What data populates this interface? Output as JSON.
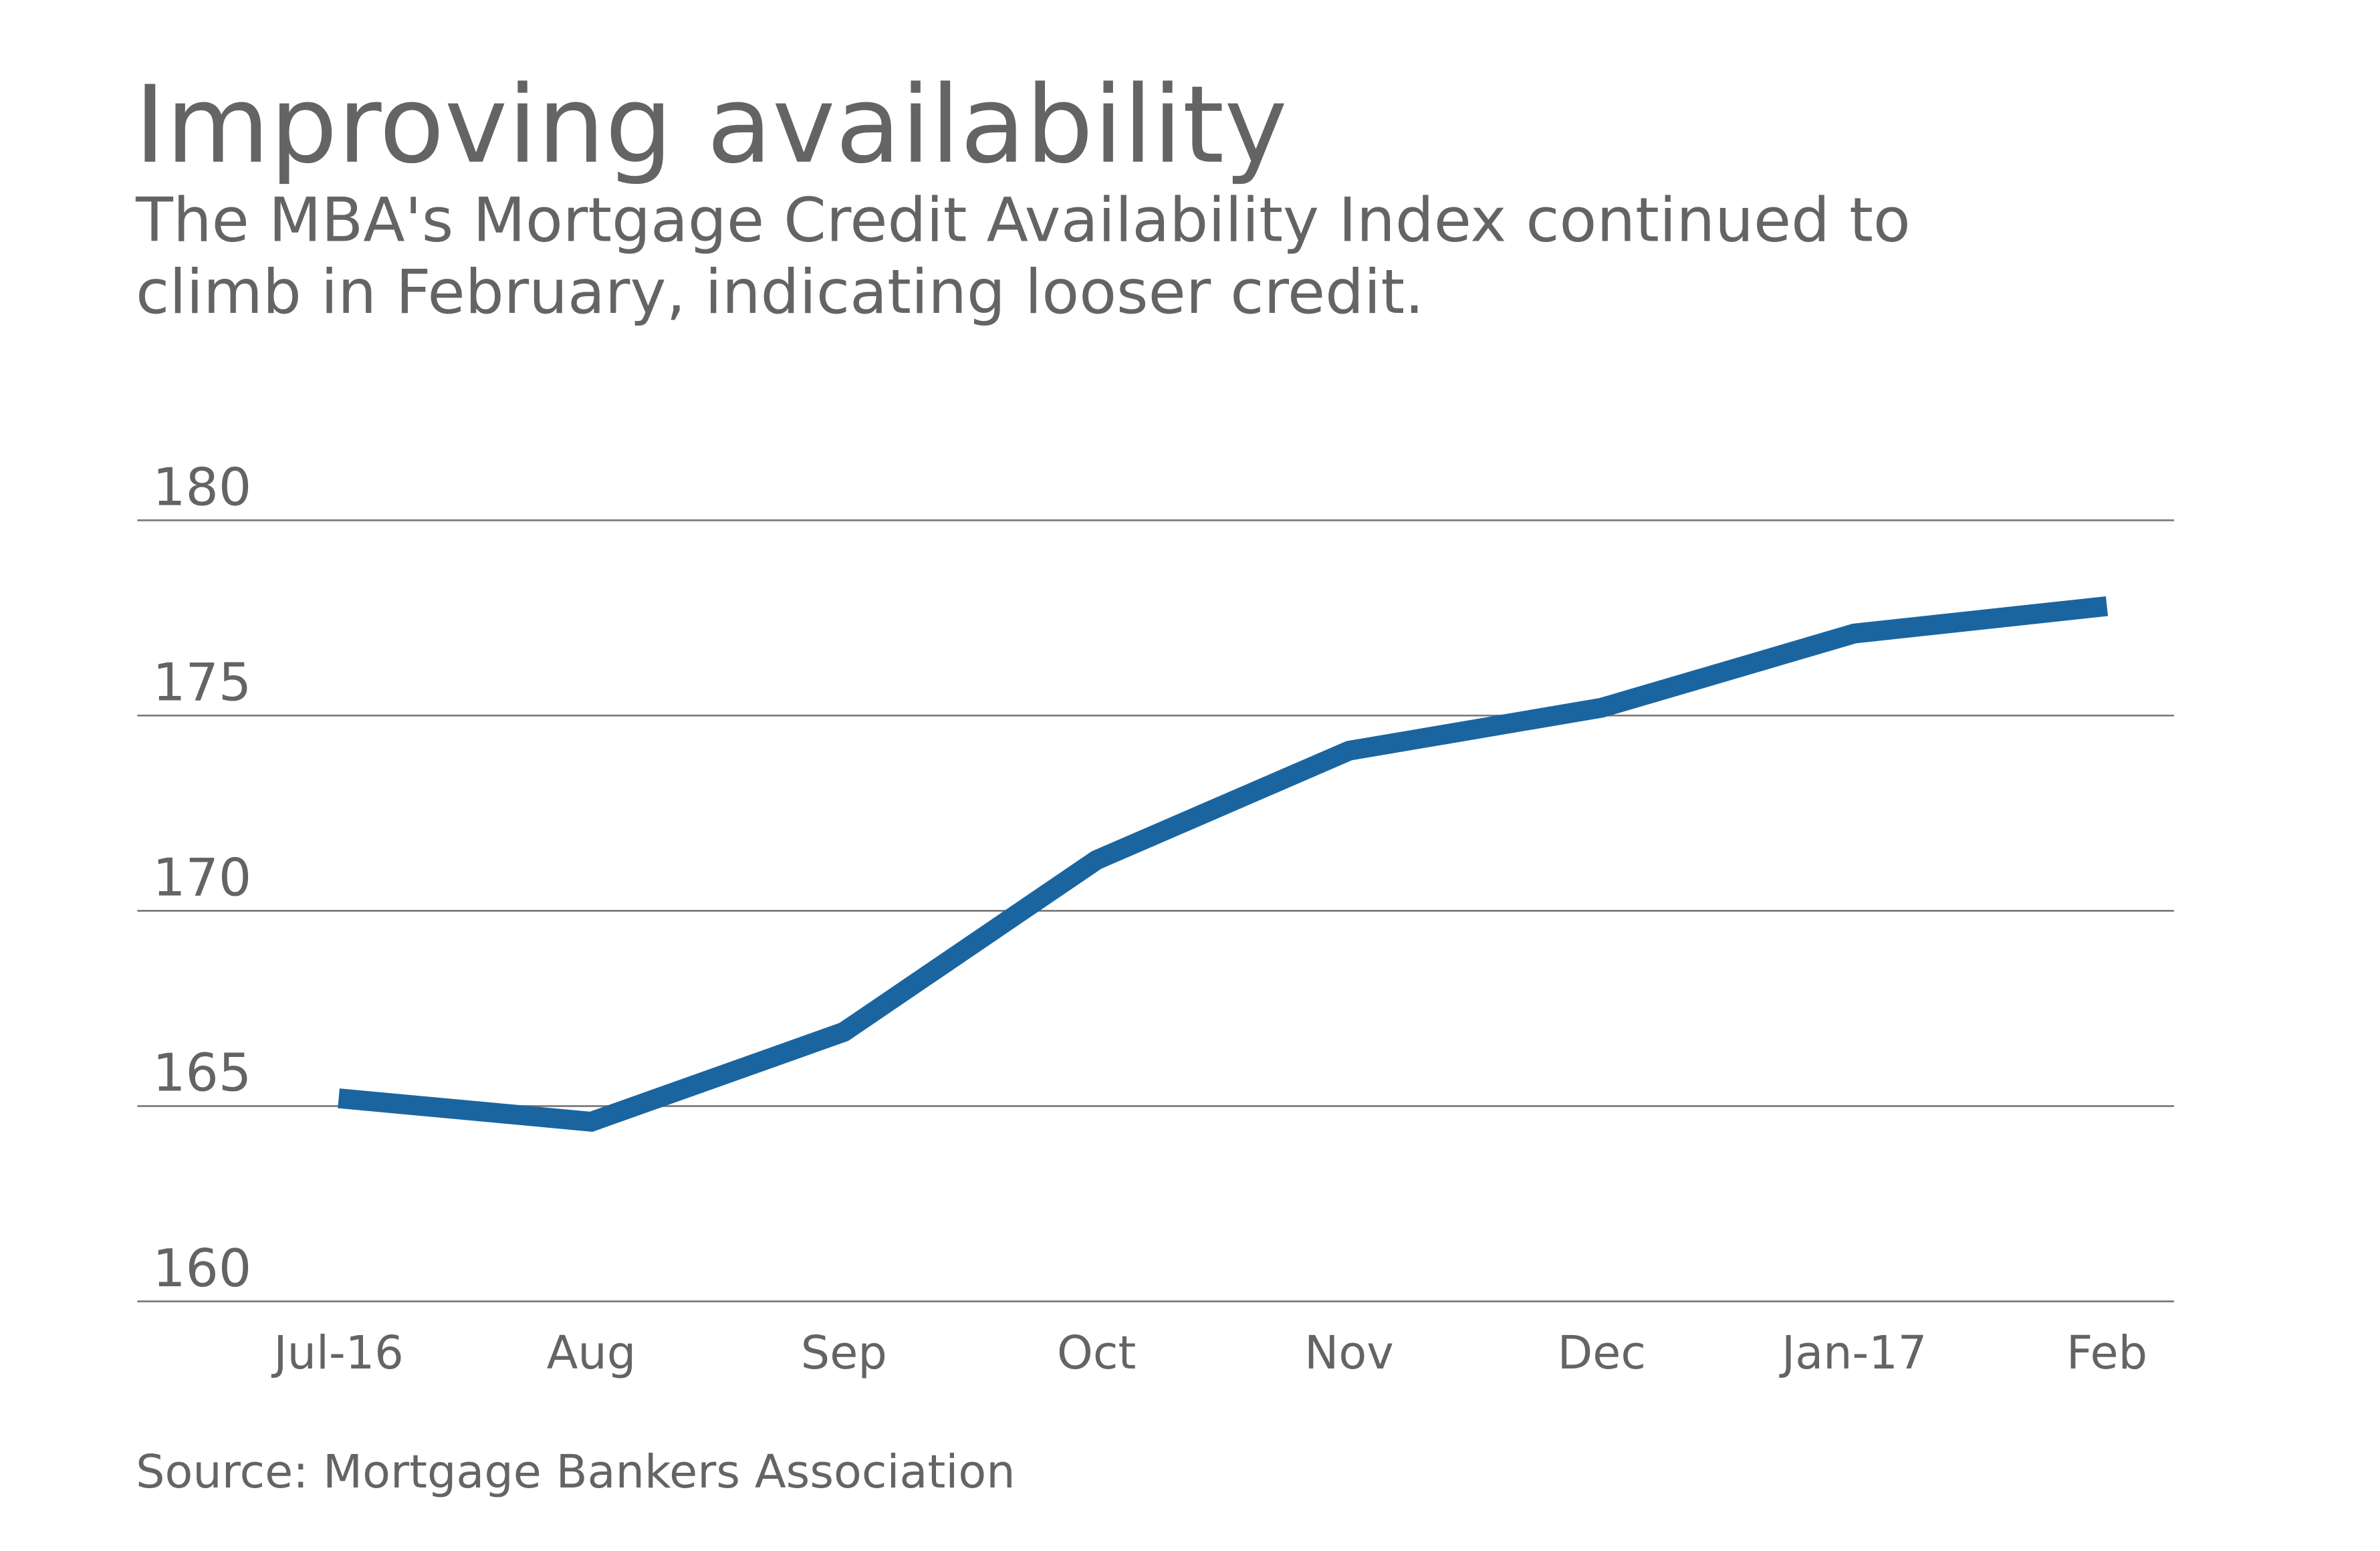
{
  "chart_data": {
    "type": "line",
    "title": "Improving availability",
    "subtitle_lines": [
      "The MBA's Mortgage Credit Availability Index continued to",
      "climb in February, indicating looser credit."
    ],
    "source": "Source: Mortgage Bankers Association",
    "xlabel": "",
    "ylabel": "",
    "categories": [
      "Jul-16",
      "Aug",
      "Sep",
      "Oct",
      "Nov",
      "Dec",
      "Jan-17",
      "Feb"
    ],
    "series": [
      {
        "name": "Mortgage Credit Availability Index",
        "values": [
          165.2,
          164.6,
          166.9,
          171.3,
          174.1,
          175.2,
          177.1,
          177.8
        ],
        "color": "#1a65a0"
      }
    ],
    "yticks": [
      "160",
      "165",
      "170",
      "175",
      "180"
    ],
    "ylim": [
      160,
      180
    ],
    "grid": true,
    "legend": "none"
  }
}
